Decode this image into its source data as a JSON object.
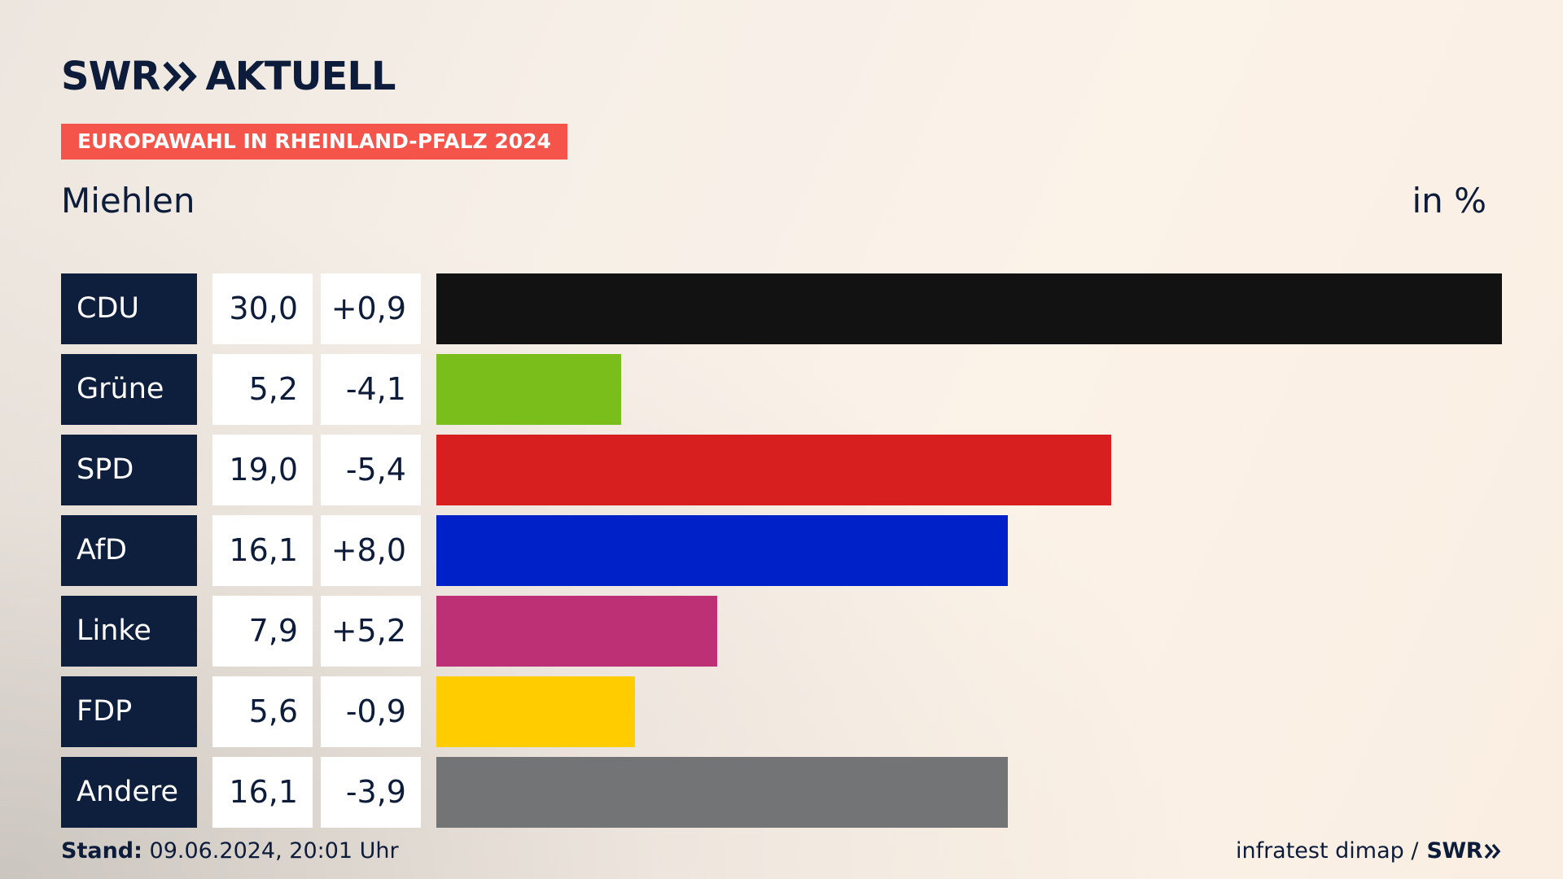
{
  "brand": {
    "logo_left": "SWR",
    "logo_right": "AKTUELL",
    "footer_logo": "SWR"
  },
  "badge": "EUROPAWAHL IN RHEINLAND-PFALZ 2024",
  "region": "Miehlen",
  "unit": "in %",
  "footer": {
    "stand_label": "Stand:",
    "stand_value": "09.06.2024, 20:01 Uhr",
    "source": "infratest dimap /"
  },
  "chart_data": {
    "type": "bar",
    "title": "Miehlen",
    "ylabel": "in %",
    "categories": [
      "CDU",
      "Grüne",
      "SPD",
      "AfD",
      "Linke",
      "FDP",
      "Andere"
    ],
    "values": [
      30.0,
      5.2,
      19.0,
      16.1,
      7.9,
      5.6,
      16.1
    ],
    "value_labels": [
      "30,0",
      "5,2",
      "19,0",
      "16,1",
      "7,9",
      "5,6",
      "16,1"
    ],
    "diff_labels": [
      "+0,9",
      "-4,1",
      "-5,4",
      "+8,0",
      "+5,2",
      "-0,9",
      "-3,9"
    ],
    "colors": [
      "#121212",
      "#79be1b",
      "#d71f1f",
      "#0021c8",
      "#bd3075",
      "#ffcc00",
      "#737476"
    ],
    "xlim": [
      0,
      30.0
    ]
  }
}
